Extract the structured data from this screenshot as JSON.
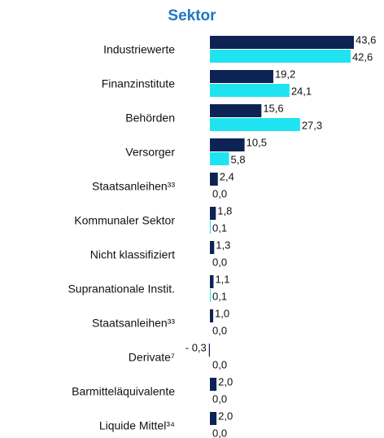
{
  "chart_data": {
    "type": "hbar",
    "title": "Sektor",
    "categories": [
      "Industriewerte",
      "Finanzinstitute",
      "Behörden",
      "Versorger",
      "Staatsanleihen³³",
      "Kommunaler Sektor",
      "Nicht klassifiziert",
      "Supranationale Instit.",
      "Staatsanleihen³³",
      "Derivate⁷",
      "Barmitteläquivalente",
      "Liquide Mittel³⁴"
    ],
    "series": [
      {
        "color": "#0d2354",
        "values": [
          43.6,
          19.2,
          15.6,
          10.5,
          2.4,
          1.8,
          1.3,
          1.1,
          1.0,
          -0.3,
          2.0,
          2.0
        ],
        "value_labels": [
          "43,6",
          "19,2",
          "15,6",
          "10,5",
          "2,4",
          "1,8",
          "1,3",
          "1,1",
          "1,0",
          "- 0,3",
          "2,0",
          "2,0"
        ]
      },
      {
        "color": "#1fe3f0",
        "values": [
          42.6,
          24.1,
          27.3,
          5.8,
          0.0,
          0.1,
          0.0,
          0.1,
          0.0,
          0.0,
          0.0,
          0.0
        ],
        "value_labels": [
          "42,6",
          "24,1",
          "27,3",
          "5,8",
          "0,0",
          "0,1",
          "0,0",
          "0,1",
          "0,0",
          "0,0",
          "0,0",
          "0,0"
        ]
      }
    ]
  }
}
